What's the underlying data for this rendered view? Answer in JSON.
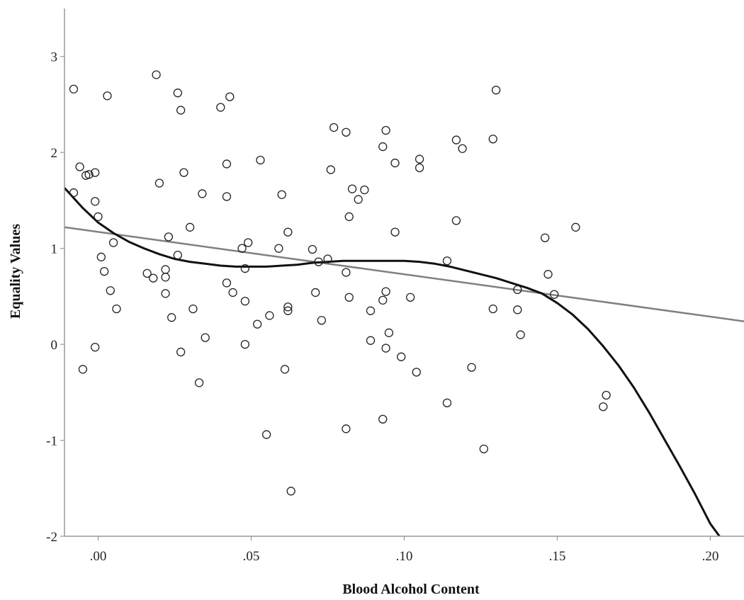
{
  "chart_data": {
    "type": "scatter",
    "title": "",
    "xlabel": "Blood Alcohol Content",
    "ylabel": "Equality Values",
    "xlim": [
      -0.011,
      0.211
    ],
    "ylim": [
      -2,
      3.5
    ],
    "x_ticks": [
      0,
      0.05,
      0.1,
      0.15,
      0.2
    ],
    "x_tick_labels": [
      ".00",
      ".05",
      ".10",
      ".15",
      ".20"
    ],
    "y_ticks": [
      3,
      2,
      1,
      0,
      -1,
      -2
    ],
    "y_tick_labels": [
      "3",
      "2",
      "1",
      "0",
      "-1",
      "-2"
    ],
    "grid": false,
    "legend": "none",
    "colors": {
      "points": "#222222",
      "linear_fit": "#808080",
      "cubic_fit": "#111111",
      "axes": "#999999"
    },
    "series": [
      {
        "kind": "points",
        "points": [
          [
            -0.008,
            2.66
          ],
          [
            -0.006,
            1.85
          ],
          [
            -0.005,
            -0.26
          ],
          [
            -0.004,
            1.76
          ],
          [
            -0.003,
            1.77
          ],
          [
            -0.001,
            1.79
          ],
          [
            -0.001,
            1.49
          ],
          [
            -0.008,
            1.58
          ],
          [
            0.0,
            1.33
          ],
          [
            0.001,
            0.91
          ],
          [
            0.002,
            0.76
          ],
          [
            0.003,
            2.59
          ],
          [
            0.004,
            0.56
          ],
          [
            0.005,
            1.06
          ],
          [
            0.006,
            0.37
          ],
          [
            -0.001,
            -0.03
          ],
          [
            0.016,
            0.74
          ],
          [
            0.018,
            0.69
          ],
          [
            0.019,
            2.81
          ],
          [
            0.02,
            1.68
          ],
          [
            0.022,
            0.78
          ],
          [
            0.022,
            0.7
          ],
          [
            0.023,
            1.12
          ],
          [
            0.024,
            0.28
          ],
          [
            0.022,
            0.53
          ],
          [
            0.026,
            2.62
          ],
          [
            0.026,
            0.93
          ],
          [
            0.027,
            2.44
          ],
          [
            0.027,
            -0.08
          ],
          [
            0.028,
            1.79
          ],
          [
            0.03,
            1.22
          ],
          [
            0.031,
            0.37
          ],
          [
            0.033,
            -0.4
          ],
          [
            0.034,
            1.57
          ],
          [
            0.035,
            0.07
          ],
          [
            0.04,
            2.47
          ],
          [
            0.042,
            1.54
          ],
          [
            0.042,
            1.88
          ],
          [
            0.043,
            2.58
          ],
          [
            0.042,
            0.64
          ],
          [
            0.044,
            0.54
          ],
          [
            0.047,
            1.0
          ],
          [
            0.048,
            0.79
          ],
          [
            0.048,
            0.45
          ],
          [
            0.049,
            1.06
          ],
          [
            0.048,
            0.0
          ],
          [
            0.053,
            1.92
          ],
          [
            0.052,
            0.21
          ],
          [
            0.055,
            -0.94
          ],
          [
            0.056,
            0.3
          ],
          [
            0.059,
            1.0
          ],
          [
            0.06,
            1.56
          ],
          [
            0.061,
            -0.26
          ],
          [
            0.062,
            1.17
          ],
          [
            0.062,
            0.39
          ],
          [
            0.062,
            0.35
          ],
          [
            0.063,
            -1.53
          ],
          [
            0.07,
            0.99
          ],
          [
            0.071,
            0.54
          ],
          [
            0.072,
            0.86
          ],
          [
            0.073,
            0.25
          ],
          [
            0.075,
            0.89
          ],
          [
            0.076,
            1.82
          ],
          [
            0.077,
            2.26
          ],
          [
            0.081,
            2.21
          ],
          [
            0.081,
            0.75
          ],
          [
            0.082,
            1.33
          ],
          [
            0.082,
            0.49
          ],
          [
            0.081,
            -0.88
          ],
          [
            0.083,
            1.62
          ],
          [
            0.085,
            1.51
          ],
          [
            0.087,
            1.61
          ],
          [
            0.089,
            0.04
          ],
          [
            0.089,
            0.35
          ],
          [
            0.093,
            2.06
          ],
          [
            0.094,
            2.23
          ],
          [
            0.093,
            0.46
          ],
          [
            0.094,
            0.55
          ],
          [
            0.095,
            0.12
          ],
          [
            0.094,
            -0.04
          ],
          [
            0.093,
            -0.78
          ],
          [
            0.097,
            1.89
          ],
          [
            0.097,
            1.17
          ],
          [
            0.099,
            -0.13
          ],
          [
            0.102,
            0.49
          ],
          [
            0.104,
            -0.29
          ],
          [
            0.105,
            1.93
          ],
          [
            0.105,
            1.84
          ],
          [
            0.114,
            0.87
          ],
          [
            0.114,
            -0.61
          ],
          [
            0.117,
            2.13
          ],
          [
            0.117,
            1.29
          ],
          [
            0.119,
            2.04
          ],
          [
            0.122,
            -0.24
          ],
          [
            0.126,
            -1.09
          ],
          [
            0.129,
            2.14
          ],
          [
            0.129,
            0.37
          ],
          [
            0.13,
            2.65
          ],
          [
            0.137,
            0.57
          ],
          [
            0.137,
            0.36
          ],
          [
            0.138,
            0.1
          ],
          [
            0.146,
            1.11
          ],
          [
            0.147,
            0.73
          ],
          [
            0.149,
            0.52
          ],
          [
            0.156,
            1.22
          ],
          [
            0.165,
            -0.65
          ],
          [
            0.166,
            -0.53
          ]
        ]
      },
      {
        "kind": "linear-fit",
        "points": [
          [
            -0.011,
            1.22
          ],
          [
            0.211,
            0.24
          ]
        ]
      },
      {
        "kind": "cubic-fit",
        "points": [
          [
            -0.011,
            1.63
          ],
          [
            -0.005,
            1.42
          ],
          [
            0.0,
            1.27
          ],
          [
            0.005,
            1.16
          ],
          [
            0.01,
            1.07
          ],
          [
            0.015,
            1.0
          ],
          [
            0.02,
            0.94
          ],
          [
            0.025,
            0.89
          ],
          [
            0.03,
            0.86
          ],
          [
            0.035,
            0.84
          ],
          [
            0.04,
            0.82
          ],
          [
            0.045,
            0.81
          ],
          [
            0.05,
            0.81
          ],
          [
            0.055,
            0.81
          ],
          [
            0.06,
            0.82
          ],
          [
            0.065,
            0.83
          ],
          [
            0.07,
            0.85
          ],
          [
            0.075,
            0.86
          ],
          [
            0.08,
            0.87
          ],
          [
            0.085,
            0.87
          ],
          [
            0.09,
            0.87
          ],
          [
            0.095,
            0.87
          ],
          [
            0.1,
            0.87
          ],
          [
            0.105,
            0.86
          ],
          [
            0.11,
            0.84
          ],
          [
            0.115,
            0.81
          ],
          [
            0.12,
            0.77
          ],
          [
            0.125,
            0.73
          ],
          [
            0.13,
            0.69
          ],
          [
            0.135,
            0.64
          ],
          [
            0.14,
            0.59
          ],
          [
            0.145,
            0.53
          ],
          [
            0.15,
            0.43
          ],
          [
            0.155,
            0.31
          ],
          [
            0.16,
            0.16
          ],
          [
            0.165,
            -0.02
          ],
          [
            0.17,
            -0.22
          ],
          [
            0.175,
            -0.45
          ],
          [
            0.18,
            -0.71
          ],
          [
            0.185,
            -0.99
          ],
          [
            0.19,
            -1.27
          ],
          [
            0.195,
            -1.56
          ],
          [
            0.2,
            -1.87
          ],
          [
            0.203,
            -2.0
          ]
        ]
      }
    ]
  }
}
